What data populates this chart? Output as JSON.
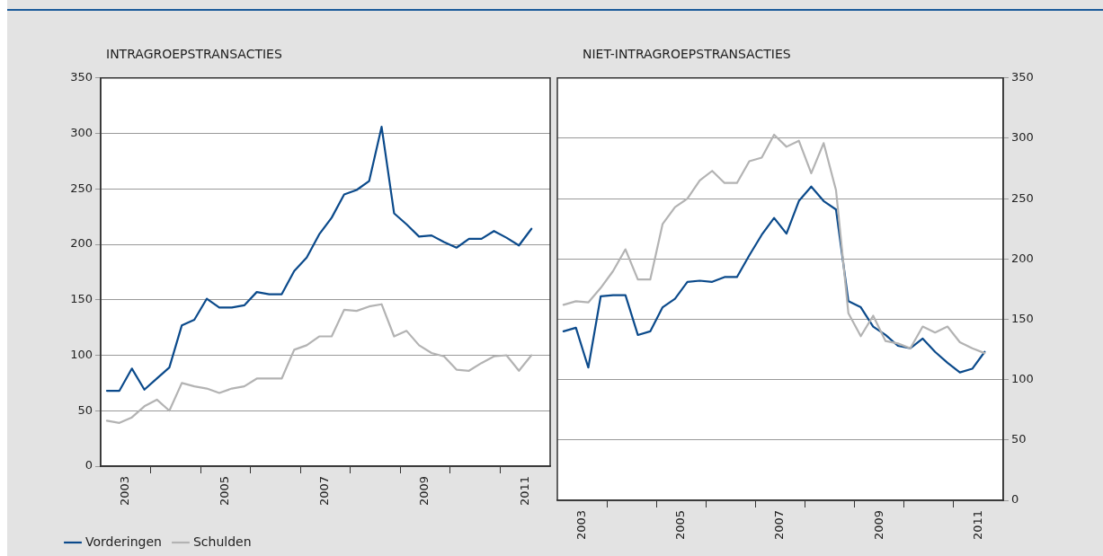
{
  "chart_data": [
    {
      "type": "line",
      "title": "INTRAGROEPSTRANSACTIES",
      "x": [
        2003.125,
        2003.375,
        2003.625,
        2003.875,
        2004.125,
        2004.375,
        2004.625,
        2004.875,
        2005.125,
        2005.375,
        2005.625,
        2005.875,
        2006.125,
        2006.375,
        2006.625,
        2006.875,
        2007.125,
        2007.375,
        2007.625,
        2007.875,
        2008.125,
        2008.375,
        2008.625,
        2008.875,
        2009.125,
        2009.375,
        2009.625,
        2009.875,
        2010.125,
        2010.375,
        2010.625,
        2010.875,
        2011.125,
        2011.375,
        2011.625
      ],
      "series": [
        {
          "name": "Vorderingen",
          "color": "#0b4a8b",
          "values": [
            68,
            68,
            88,
            69,
            79,
            89,
            127,
            132,
            151,
            143,
            143,
            145,
            157,
            155,
            155,
            176,
            188,
            209,
            224,
            245,
            249,
            257,
            306,
            228,
            218,
            207,
            208,
            202,
            197,
            205,
            205,
            212,
            206,
            199,
            214
          ]
        },
        {
          "name": "Schulden",
          "color": "#b3b3b3",
          "values": [
            41,
            39,
            44,
            54,
            60,
            50,
            75,
            72,
            70,
            66,
            70,
            72,
            79,
            79,
            79,
            105,
            109,
            117,
            117,
            141,
            140,
            144,
            146,
            117,
            122,
            109,
            102,
            99,
            87,
            86,
            93,
            99,
            100,
            86,
            100
          ]
        }
      ],
      "xlim": [
        2003,
        2012
      ],
      "xticks": [
        {
          "value": 2003.5,
          "label": "2003"
        },
        {
          "value": 2004,
          "label": null
        },
        {
          "value": 2005,
          "label": null
        },
        {
          "value": 2005.5,
          "label": "2005"
        },
        {
          "value": 2006,
          "label": null
        },
        {
          "value": 2007,
          "label": null
        },
        {
          "value": 2007.5,
          "label": "2007"
        },
        {
          "value": 2008,
          "label": null
        },
        {
          "value": 2009,
          "label": null
        },
        {
          "value": 2009.5,
          "label": "2009"
        },
        {
          "value": 2010,
          "label": null
        },
        {
          "value": 2011,
          "label": null
        },
        {
          "value": 2011.5,
          "label": "2011"
        }
      ],
      "ylim": [
        0,
        350
      ],
      "yticks": [
        0,
        50,
        100,
        150,
        200,
        250,
        300,
        350
      ],
      "grid": "y",
      "legend": "bottom left",
      "marker": "none",
      "line_style": "solid"
    },
    {
      "type": "line",
      "title": "NIET-INTRAGROEPSTRANSACTIES",
      "x": [
        2003.125,
        2003.375,
        2003.625,
        2003.875,
        2004.125,
        2004.375,
        2004.625,
        2004.875,
        2005.125,
        2005.375,
        2005.625,
        2005.875,
        2006.125,
        2006.375,
        2006.625,
        2006.875,
        2007.125,
        2007.375,
        2007.625,
        2007.875,
        2008.125,
        2008.375,
        2008.625,
        2008.875,
        2009.125,
        2009.375,
        2009.625,
        2009.875,
        2010.125,
        2010.375,
        2010.625,
        2010.875,
        2011.125,
        2011.375,
        2011.625
      ],
      "series": [
        {
          "color": "#b3b3b3",
          "values": [
            162,
            165,
            164,
            176,
            190,
            208,
            183,
            183,
            229,
            243,
            250,
            265,
            273,
            263,
            263,
            281,
            284,
            303,
            293,
            298,
            271,
            296,
            257,
            155,
            136,
            153,
            132,
            130,
            126,
            144,
            139,
            144,
            131,
            126,
            122
          ]
        },
        {
          "color": "#0b4a8b",
          "values": [
            140,
            143,
            110,
            169,
            170,
            170,
            137,
            140,
            160,
            167,
            181,
            182,
            181,
            185,
            185,
            203,
            220,
            234,
            221,
            248,
            260,
            248,
            241,
            165,
            160,
            144,
            137,
            128,
            126,
            134,
            123,
            114,
            106,
            109,
            123
          ]
        }
      ],
      "xlim": [
        2003,
        2012
      ],
      "xticks": [
        {
          "value": 2003.5,
          "label": "2003"
        },
        {
          "value": 2004,
          "label": null
        },
        {
          "value": 2005,
          "label": null
        },
        {
          "value": 2005.5,
          "label": "2005"
        },
        {
          "value": 2006,
          "label": null
        },
        {
          "value": 2007,
          "label": null
        },
        {
          "value": 2007.5,
          "label": "2007"
        },
        {
          "value": 2008,
          "label": null
        },
        {
          "value": 2009,
          "label": null
        },
        {
          "value": 2009.5,
          "label": "2009"
        },
        {
          "value": 2010,
          "label": null
        },
        {
          "value": 2011,
          "label": null
        },
        {
          "value": 2011.5,
          "label": "2011"
        }
      ],
      "ylim": [
        0,
        350
      ],
      "yticks": [
        0,
        50,
        100,
        150,
        200,
        250,
        300,
        350
      ],
      "grid": "y",
      "marker": "none",
      "line_style": "solid"
    }
  ]
}
